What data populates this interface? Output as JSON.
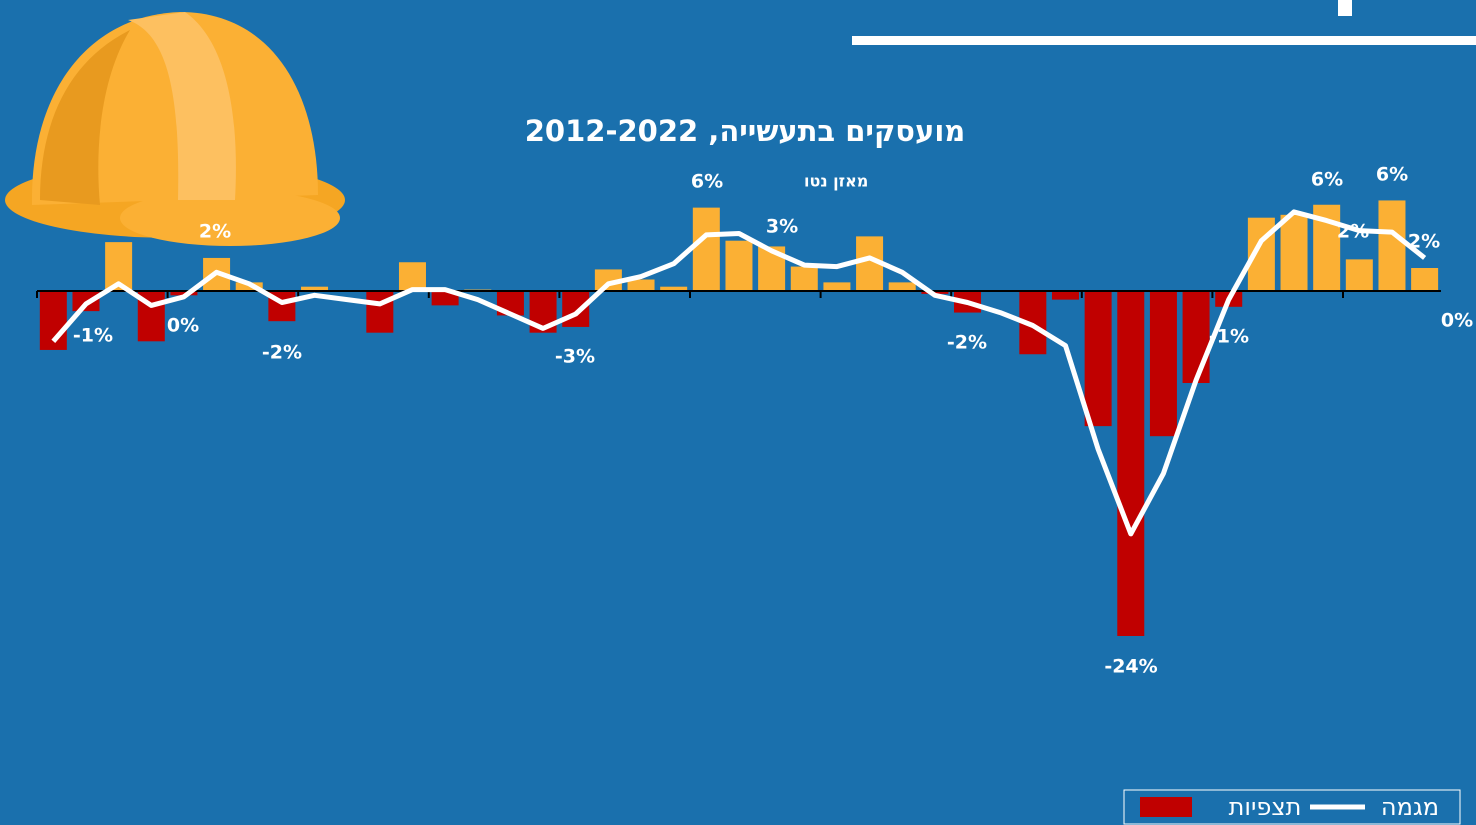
{
  "chart_data": {
    "type": "bar_line",
    "title": "מועסקים בתעשייה, 2012-2022",
    "y_axis_label": "מאזן נטו",
    "ylim": [
      -25,
      10
    ],
    "positive_color": "#fbb034",
    "series": [
      {
        "name": "תצפיות",
        "color": "#c00000",
        "type": "bar",
        "values": [
          -4.1,
          -1.4,
          3.4,
          -3.5,
          -0.3,
          2.3,
          0.6,
          -2.1,
          0.3,
          0,
          -2.9,
          2.0,
          -1.0,
          0.1,
          -1.7,
          -2.9,
          -2.5,
          1.5,
          0.8,
          0.3,
          5.8,
          3.5,
          3.1,
          1.7,
          0.6,
          3.8,
          0.6,
          -0.2,
          -1.5,
          0,
          -4.4,
          -0.6,
          -9.4,
          -24,
          -10.1,
          -6.4,
          -1.1,
          5.1,
          5.3,
          6.0,
          2.2,
          6.3,
          1.6
        ]
      },
      {
        "name": "מגמה",
        "color": "#ffffff",
        "type": "line",
        "values": [
          -3.5,
          -0.9,
          0.5,
          -1.0,
          -0.4,
          1.3,
          0.5,
          -0.8,
          -0.3,
          -0.6,
          -0.9,
          0.1,
          0.1,
          -0.6,
          -1.6,
          -2.6,
          -1.6,
          0.5,
          1.0,
          1.9,
          3.9,
          4.0,
          2.8,
          1.8,
          1.7,
          2.3,
          1.3,
          -0.3,
          -0.8,
          -1.5,
          -2.4,
          -3.8,
          -11,
          -16.9,
          -12.7,
          -6.2,
          -0.6,
          3.5,
          5.5,
          4.9,
          4.2,
          4.1,
          2.3
        ]
      }
    ],
    "annotations": [
      "-1%",
      "2%",
      "0%",
      "-2%",
      "-3%",
      "6%",
      "3%",
      "-2%",
      "-24%",
      "-1%",
      "6%",
      "6%",
      "2%",
      "2%",
      "0%"
    ]
  }
}
